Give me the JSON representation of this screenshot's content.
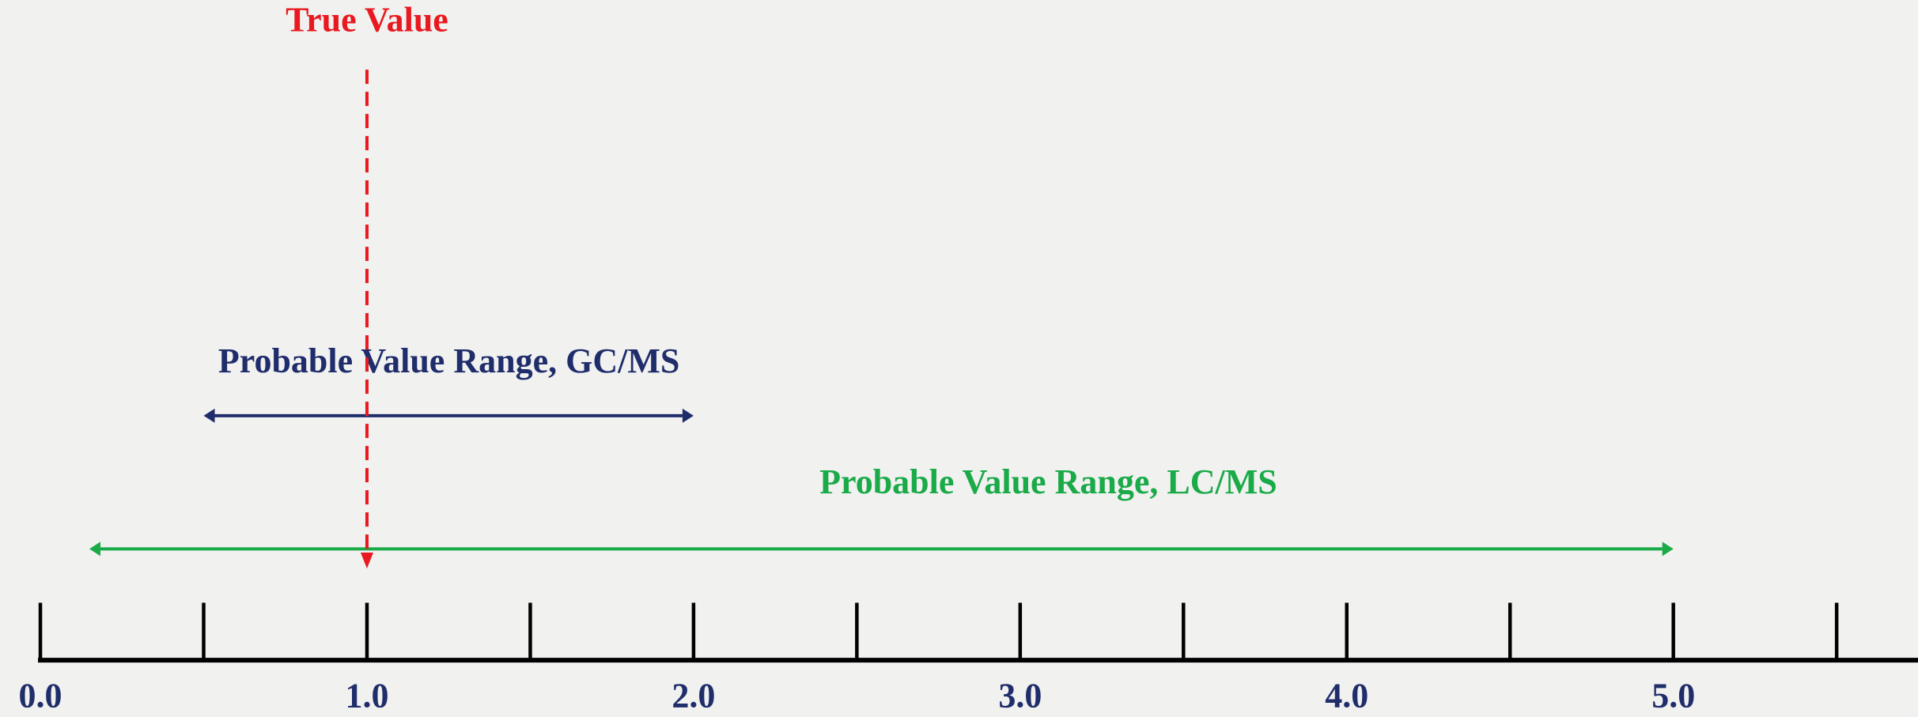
{
  "true_value": {
    "label": "True Value",
    "value": 1,
    "color": "#e8191f"
  },
  "ranges": [
    {
      "label": "Probable Value Range, GC/MS",
      "from": 0.5,
      "to": 2,
      "color": "#1f2d6b"
    },
    {
      "label": "Probable Value Range, LC/MS",
      "from": 0.15,
      "to": 5,
      "color": "#1aaa48"
    }
  ],
  "axis": {
    "xlim": [
      0,
      5.75
    ],
    "xticks": [
      {
        "value": 0,
        "label": "0.0"
      },
      0.5,
      {
        "value": 1,
        "label": "1.0"
      },
      1.5,
      {
        "value": 2,
        "label": "2.0"
      },
      2.5,
      {
        "value": 3,
        "label": "3.0"
      },
      3.5,
      {
        "value": 4,
        "label": "4.0"
      },
      4.5,
      {
        "value": 5,
        "label": "5.0"
      },
      5.5
    ]
  }
}
